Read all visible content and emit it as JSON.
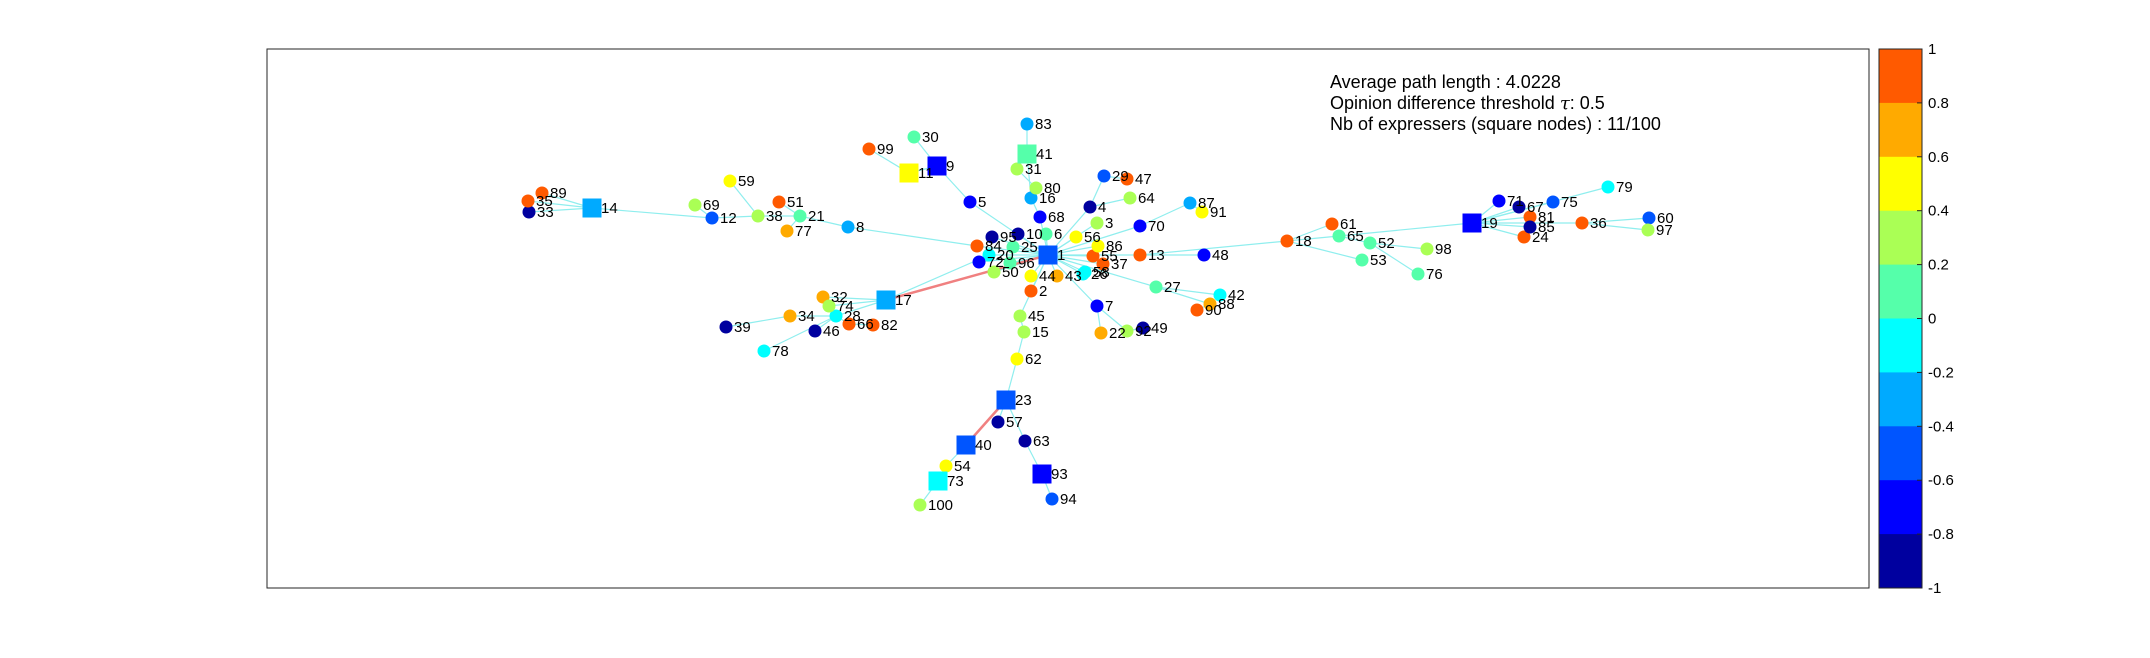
{
  "info": {
    "avg_path": "Average path length : 4.0228",
    "threshold_prefix": "Opinion difference threshold ",
    "threshold_symbol": "τ",
    "threshold_suffix": ": 0.5",
    "expressers": "Nb of expressers (square nodes) : 11/100"
  },
  "colorbar": {
    "ticks": [
      "1",
      "0.8",
      "0.6",
      "0.4",
      "0.2",
      "0",
      "-0.2",
      "-0.4",
      "-0.6",
      "-0.8",
      "-1"
    ],
    "colors": [
      "#ff5a00",
      "#ffaa00",
      "#ffff00",
      "#aaff55",
      "#55ffaa",
      "#00ffff",
      "#00aaff",
      "#0055ff",
      "#0000ff",
      "#00009f"
    ]
  },
  "edge_colors": {
    "normal": "#8feeee",
    "highlight": "#f08080"
  },
  "nodes": [
    {
      "id": "1",
      "opinion": -0.55,
      "expresser": true
    },
    {
      "id": "2",
      "opinion": 0.95,
      "expresser": false
    },
    {
      "id": "3",
      "opinion": 0.35,
      "expresser": false
    },
    {
      "id": "4",
      "opinion": -0.85,
      "expresser": false
    },
    {
      "id": "5",
      "opinion": -0.65,
      "expresser": false
    },
    {
      "id": "6",
      "opinion": 0.05,
      "expresser": false
    },
    {
      "id": "7",
      "opinion": -0.7,
      "expresser": false
    },
    {
      "id": "8",
      "opinion": -0.25,
      "expresser": false
    },
    {
      "id": "9",
      "opinion": -0.75,
      "expresser": true
    },
    {
      "id": "10",
      "opinion": -0.95,
      "expresser": false
    },
    {
      "id": "11",
      "opinion": 0.6,
      "expresser": true
    },
    {
      "id": "12",
      "opinion": -0.45,
      "expresser": false
    },
    {
      "id": "13",
      "opinion": 1.0,
      "expresser": false
    },
    {
      "id": "14",
      "opinion": -0.3,
      "expresser": true
    },
    {
      "id": "15",
      "opinion": 0.35,
      "expresser": false
    },
    {
      "id": "16",
      "opinion": -0.35,
      "expresser": false
    },
    {
      "id": "17",
      "opinion": -0.3,
      "expresser": true
    },
    {
      "id": "18",
      "opinion": 1.0,
      "expresser": false
    },
    {
      "id": "19",
      "opinion": -0.65,
      "expresser": true
    },
    {
      "id": "20",
      "opinion": -0.05,
      "expresser": false
    },
    {
      "id": "21",
      "opinion": 0.15,
      "expresser": false
    },
    {
      "id": "22",
      "opinion": 0.75,
      "expresser": false
    },
    {
      "id": "23",
      "opinion": -0.45,
      "expresser": true
    },
    {
      "id": "24",
      "opinion": 0.85,
      "expresser": false
    },
    {
      "id": "25",
      "opinion": 0.15,
      "expresser": false
    },
    {
      "id": "26",
      "opinion": -0.1,
      "expresser": false
    },
    {
      "id": "27",
      "opinion": 0.15,
      "expresser": false
    },
    {
      "id": "28",
      "opinion": -0.15,
      "expresser": false
    },
    {
      "id": "29",
      "opinion": -0.55,
      "expresser": false
    },
    {
      "id": "30",
      "opinion": 0.05,
      "expresser": false
    },
    {
      "id": "31",
      "opinion": 0.25,
      "expresser": false
    },
    {
      "id": "32",
      "opinion": 0.75,
      "expresser": false
    },
    {
      "id": "33",
      "opinion": -0.85,
      "expresser": false
    },
    {
      "id": "34",
      "opinion": 0.75,
      "expresser": false
    },
    {
      "id": "35",
      "opinion": 0.85,
      "expresser": false
    },
    {
      "id": "36",
      "opinion": 0.8,
      "expresser": false
    },
    {
      "id": "37",
      "opinion": 0.95,
      "expresser": false
    },
    {
      "id": "38",
      "opinion": 0.25,
      "expresser": false
    },
    {
      "id": "39",
      "opinion": -0.85,
      "expresser": false
    },
    {
      "id": "40",
      "opinion": -0.45,
      "expresser": true
    },
    {
      "id": "41",
      "opinion": 0.05,
      "expresser": true
    },
    {
      "id": "42",
      "opinion": -0.05,
      "expresser": false
    },
    {
      "id": "43",
      "opinion": 0.65,
      "expresser": false
    },
    {
      "id": "44",
      "opinion": 0.55,
      "expresser": false
    },
    {
      "id": "45",
      "opinion": 0.25,
      "expresser": false
    },
    {
      "id": "46",
      "opinion": -0.85,
      "expresser": false
    },
    {
      "id": "47",
      "opinion": 0.85,
      "expresser": false
    },
    {
      "id": "48",
      "opinion": -0.65,
      "expresser": false
    },
    {
      "id": "49",
      "opinion": -0.9,
      "expresser": false
    },
    {
      "id": "50",
      "opinion": 0.25,
      "expresser": false
    },
    {
      "id": "51",
      "opinion": 0.85,
      "expresser": false
    },
    {
      "id": "52",
      "opinion": 0.05,
      "expresser": false
    },
    {
      "id": "53",
      "opinion": 0.05,
      "expresser": false
    },
    {
      "id": "54",
      "opinion": 0.55,
      "expresser": false
    },
    {
      "id": "55",
      "opinion": 0.95,
      "expresser": false
    },
    {
      "id": "56",
      "opinion": 0.5,
      "expresser": false
    },
    {
      "id": "57",
      "opinion": -0.95,
      "expresser": false
    },
    {
      "id": "58",
      "opinion": -0.1,
      "expresser": false
    },
    {
      "id": "59",
      "opinion": 0.5,
      "expresser": false
    },
    {
      "id": "60",
      "opinion": -0.5,
      "expresser": false
    },
    {
      "id": "61",
      "opinion": 0.95,
      "expresser": false
    },
    {
      "id": "62",
      "opinion": 0.45,
      "expresser": false
    },
    {
      "id": "63",
      "opinion": -0.9,
      "expresser": false
    },
    {
      "id": "64",
      "opinion": 0.25,
      "expresser": false
    },
    {
      "id": "65",
      "opinion": 0.05,
      "expresser": false
    },
    {
      "id": "66",
      "opinion": 0.85,
      "expresser": false
    },
    {
      "id": "67",
      "opinion": -0.9,
      "expresser": false
    },
    {
      "id": "68",
      "opinion": -0.65,
      "expresser": false
    },
    {
      "id": "69",
      "opinion": 0.25,
      "expresser": false
    },
    {
      "id": "70",
      "opinion": -0.65,
      "expresser": false
    },
    {
      "id": "71",
      "opinion": -0.65,
      "expresser": false
    },
    {
      "id": "72",
      "opinion": -0.6,
      "expresser": false
    },
    {
      "id": "73",
      "opinion": -0.05,
      "expresser": true
    },
    {
      "id": "74",
      "opinion": 0.25,
      "expresser": false
    },
    {
      "id": "75",
      "opinion": -0.55,
      "expresser": false
    },
    {
      "id": "76",
      "opinion": 0.05,
      "expresser": false
    },
    {
      "id": "77",
      "opinion": 0.75,
      "expresser": false
    },
    {
      "id": "78",
      "opinion": -0.1,
      "expresser": false
    },
    {
      "id": "79",
      "opinion": -0.15,
      "expresser": false
    },
    {
      "id": "80",
      "opinion": 0.25,
      "expresser": false
    },
    {
      "id": "81",
      "opinion": 0.95,
      "expresser": false
    },
    {
      "id": "82",
      "opinion": 1.0,
      "expresser": false
    },
    {
      "id": "83",
      "opinion": -0.3,
      "expresser": false
    },
    {
      "id": "84",
      "opinion": 0.95,
      "expresser": false
    },
    {
      "id": "85",
      "opinion": -0.85,
      "expresser": false
    },
    {
      "id": "86",
      "opinion": 0.55,
      "expresser": false
    },
    {
      "id": "87",
      "opinion": -0.35,
      "expresser": false
    },
    {
      "id": "88",
      "opinion": 0.75,
      "expresser": false
    },
    {
      "id": "89",
      "opinion": 0.85,
      "expresser": false
    },
    {
      "id": "90",
      "opinion": 1.0,
      "expresser": false
    },
    {
      "id": "91",
      "opinion": 0.55,
      "expresser": false
    },
    {
      "id": "92",
      "opinion": 0.25,
      "expresser": false
    },
    {
      "id": "93",
      "opinion": -0.6,
      "expresser": true
    },
    {
      "id": "94",
      "opinion": -0.45,
      "expresser": false
    },
    {
      "id": "95",
      "opinion": -0.85,
      "expresser": false
    },
    {
      "id": "96",
      "opinion": 0.05,
      "expresser": false
    },
    {
      "id": "97",
      "opinion": 0.25,
      "expresser": false
    },
    {
      "id": "98",
      "opinion": 0.35,
      "expresser": false
    },
    {
      "id": "99",
      "opinion": 0.95,
      "expresser": false
    },
    {
      "id": "100",
      "opinion": 0.25,
      "expresser": false
    }
  ],
  "edges": [
    [
      "1",
      "10"
    ],
    [
      "1",
      "95"
    ],
    [
      "1",
      "6"
    ],
    [
      "1",
      "68"
    ],
    [
      "1",
      "84"
    ],
    [
      "1",
      "20"
    ],
    [
      "1",
      "72"
    ],
    [
      "1",
      "50"
    ],
    [
      "1",
      "25"
    ],
    [
      "1",
      "96"
    ],
    [
      "1",
      "44"
    ],
    [
      "1",
      "43"
    ],
    [
      "1",
      "2"
    ],
    [
      "1",
      "26"
    ],
    [
      "1",
      "58"
    ],
    [
      "1",
      "55"
    ],
    [
      "1",
      "37"
    ],
    [
      "1",
      "86"
    ],
    [
      "1",
      "56"
    ],
    [
      "1",
      "13"
    ],
    [
      "1",
      "3"
    ],
    [
      "1",
      "4"
    ],
    [
      "1",
      "5"
    ],
    [
      "1",
      "45"
    ],
    [
      "1",
      "7"
    ],
    [
      "1",
      "27"
    ],
    [
      "1",
      "70"
    ],
    [
      "13",
      "18"
    ],
    [
      "13",
      "48"
    ],
    [
      "18",
      "61"
    ],
    [
      "18",
      "65"
    ],
    [
      "18",
      "53"
    ],
    [
      "65",
      "52"
    ],
    [
      "52",
      "98"
    ],
    [
      "52",
      "76"
    ],
    [
      "65",
      "19"
    ],
    [
      "19",
      "71"
    ],
    [
      "19",
      "67"
    ],
    [
      "19",
      "81"
    ],
    [
      "19",
      "85"
    ],
    [
      "19",
      "24"
    ],
    [
      "19",
      "75"
    ],
    [
      "19",
      "36"
    ],
    [
      "19",
      "79"
    ],
    [
      "36",
      "60"
    ],
    [
      "36",
      "97"
    ],
    [
      "5",
      "9"
    ],
    [
      "9",
      "11"
    ],
    [
      "11",
      "99"
    ],
    [
      "9",
      "30"
    ],
    [
      "16",
      "41"
    ],
    [
      "41",
      "83"
    ],
    [
      "41",
      "31"
    ],
    [
      "31",
      "80"
    ],
    [
      "80",
      "16"
    ],
    [
      "16",
      "68"
    ],
    [
      "8",
      "84"
    ],
    [
      "8",
      "21"
    ],
    [
      "21",
      "51"
    ],
    [
      "21",
      "38"
    ],
    [
      "21",
      "77"
    ],
    [
      "38",
      "12"
    ],
    [
      "12",
      "69"
    ],
    [
      "38",
      "59"
    ],
    [
      "12",
      "14"
    ],
    [
      "14",
      "35"
    ],
    [
      "14",
      "89"
    ],
    [
      "14",
      "33"
    ],
    [
      "20",
      "17"
    ],
    [
      "17",
      "28"
    ],
    [
      "17",
      "32"
    ],
    [
      "17",
      "74"
    ],
    [
      "28",
      "34"
    ],
    [
      "34",
      "39"
    ],
    [
      "28",
      "46"
    ],
    [
      "28",
      "66"
    ],
    [
      "66",
      "82"
    ],
    [
      "28",
      "78"
    ],
    [
      "45",
      "15"
    ],
    [
      "15",
      "62"
    ],
    [
      "62",
      "23"
    ],
    [
      "23",
      "40"
    ],
    [
      "23",
      "57"
    ],
    [
      "23",
      "63"
    ],
    [
      "40",
      "54"
    ],
    [
      "54",
      "73"
    ],
    [
      "73",
      "100"
    ],
    [
      "63",
      "93"
    ],
    [
      "93",
      "94"
    ],
    [
      "7",
      "22"
    ],
    [
      "7",
      "92"
    ],
    [
      "92",
      "49"
    ],
    [
      "27",
      "42"
    ],
    [
      "27",
      "88"
    ],
    [
      "88",
      "90"
    ],
    [
      "70",
      "87"
    ],
    [
      "87",
      "91"
    ],
    [
      "4",
      "64"
    ],
    [
      "4",
      "29"
    ],
    [
      "29",
      "47"
    ]
  ],
  "highlight_edges": [
    [
      "1",
      "17"
    ],
    [
      "23",
      "40"
    ]
  ]
}
